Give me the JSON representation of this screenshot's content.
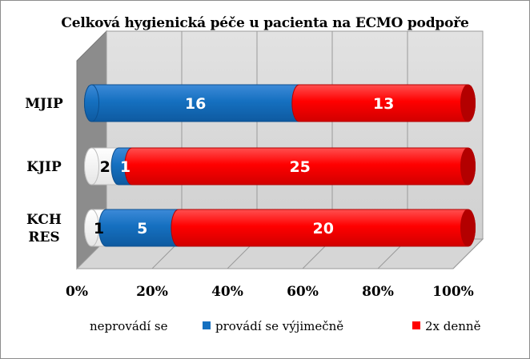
{
  "chart_data": {
    "type": "bar",
    "orientation": "horizontal",
    "stacked": "percent",
    "title": "Celková hygienická péče u pacienta na ECMO podpoře",
    "categories": [
      "MJIP",
      "KJIP",
      "KCH\nRES"
    ],
    "series": [
      {
        "name": "neprovádí se",
        "values": [
          0,
          2,
          1
        ],
        "color": "#ffffff"
      },
      {
        "name": "provádí se výjimečně",
        "values": [
          16,
          1,
          5
        ],
        "color": "#1570c0"
      },
      {
        "name": "2x denně",
        "values": [
          13,
          25,
          20
        ],
        "color": "#ff0000"
      }
    ],
    "xlim": [
      0,
      100
    ],
    "xticks": [
      "0%",
      "20%",
      "40%",
      "60%",
      "80%",
      "100%"
    ],
    "legend_position": "bottom",
    "grid": true
  }
}
